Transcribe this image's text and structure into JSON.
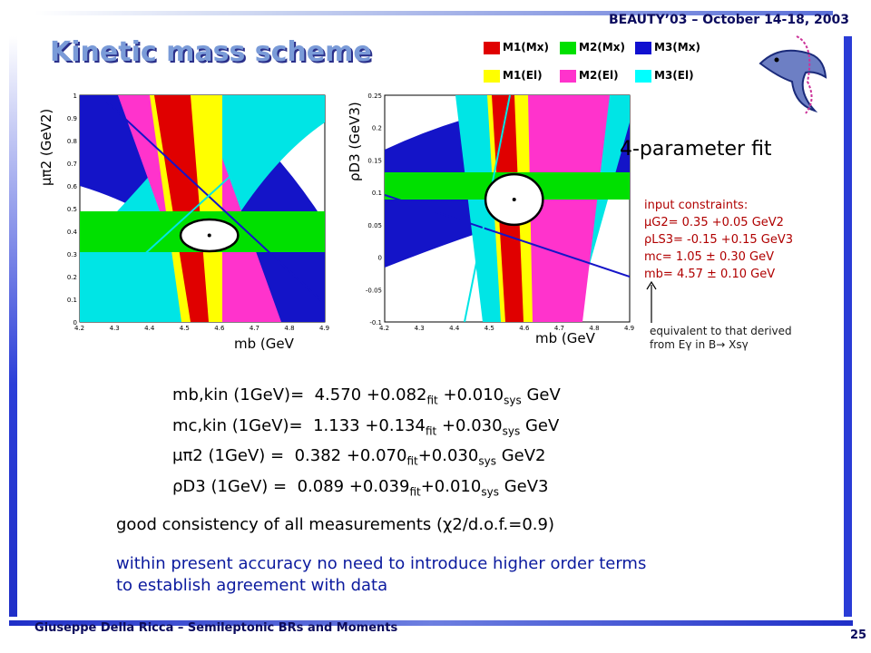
{
  "header": {
    "conference": "BEAUTY’03 – October 14-18, 2003",
    "title": "Kinetic mass scheme"
  },
  "footer": {
    "author": "Giuseppe Della Ricca – Semileptonic BRs and Moments",
    "page": "25"
  },
  "legend": [
    {
      "label": "M1(Mx)",
      "color": "#e00000"
    },
    {
      "label": "M2(Mx)",
      "color": "#00e000"
    },
    {
      "label": "M3(Mx)",
      "color": "#1010d0"
    },
    {
      "label": "M1(El)",
      "color": "#ffff00"
    },
    {
      "label": "M2(El)",
      "color": "#ff33cc"
    },
    {
      "label": "M3(El)",
      "color": "#00ffff"
    }
  ],
  "chart_data": [
    {
      "type": "contour",
      "ylabel": "μπ2 (GeV2)",
      "xlabel": "mb (GeV",
      "xlim": [
        4.2,
        4.9
      ],
      "ylim": [
        0.0,
        1.0
      ],
      "x_ticks": [
        "4.2",
        "4.3",
        "4.4",
        "4.5",
        "4.6",
        "4.7",
        "4.8",
        "4.9"
      ],
      "y_ticks": [
        "0",
        "0.1",
        "0.2",
        "0.3",
        "0.4",
        "0.5",
        "0.6",
        "0.7",
        "0.8",
        "0.9",
        "1"
      ],
      "fit_point": {
        "x": 4.57,
        "y": 0.382
      },
      "ellipse": {
        "x_halfwidth": 0.082,
        "y_halfheight": 0.07
      }
    },
    {
      "type": "contour",
      "ylabel": "ρD3 (GeV3)",
      "xlabel": "mb (GeV",
      "xlim": [
        4.2,
        4.9
      ],
      "ylim": [
        -0.1,
        0.25
      ],
      "x_ticks": [
        "4.2",
        "4.3",
        "4.4",
        "4.5",
        "4.6",
        "4.7",
        "4.8",
        "4.9"
      ],
      "y_ticks": [
        "-0.1",
        "-0.05",
        "0",
        "0.05",
        "0.1",
        "0.15",
        "0.2",
        "0.25"
      ],
      "fit_point": {
        "x": 4.57,
        "y": 0.089
      },
      "ellipse": {
        "x_halfwidth": 0.082,
        "y_halfheight": 0.039
      }
    }
  ],
  "fit_label": "4-parameter fit",
  "constraints": {
    "heading": "input constraints:",
    "lines": [
      "μG2= 0.35 +0.05 GeV2",
      "ρLS3= -0.15 +0.15 GeV3",
      "mc= 1.05 ± 0.30 GeV",
      "mb= 4.57 ± 0.10 GeV"
    ],
    "equiv_line1": "equivalent to that derived",
    "equiv_line2": "from Eγ in B→ Xsγ"
  },
  "results": [
    {
      "name": "mb,kin (1GeV)=",
      "value": "4.570",
      "fit": "+0.082",
      "sys": "+0.010",
      "unit": "GeV"
    },
    {
      "name": "mc,kin (1GeV)=",
      "value": "1.133",
      "fit": "+0.134",
      "sys": "+0.030",
      "unit": "GeV"
    },
    {
      "name": "μπ2 (1GeV) =",
      "value": "0.382",
      "fit": "+0.070",
      "sys": "+0.030",
      "unit": "GeV2"
    },
    {
      "name": "ρD3 (1GeV) =",
      "value": "0.089",
      "fit": "+0.039",
      "sys": "+0.010",
      "unit": "GeV3"
    }
  ],
  "notes": {
    "consistency": "good consistency of all measurements (χ2/d.o.f.=0.9)",
    "accuracy_1": "within present accuracy no need to introduce higher order terms",
    "accuracy_2": "to establish agreement with data"
  }
}
